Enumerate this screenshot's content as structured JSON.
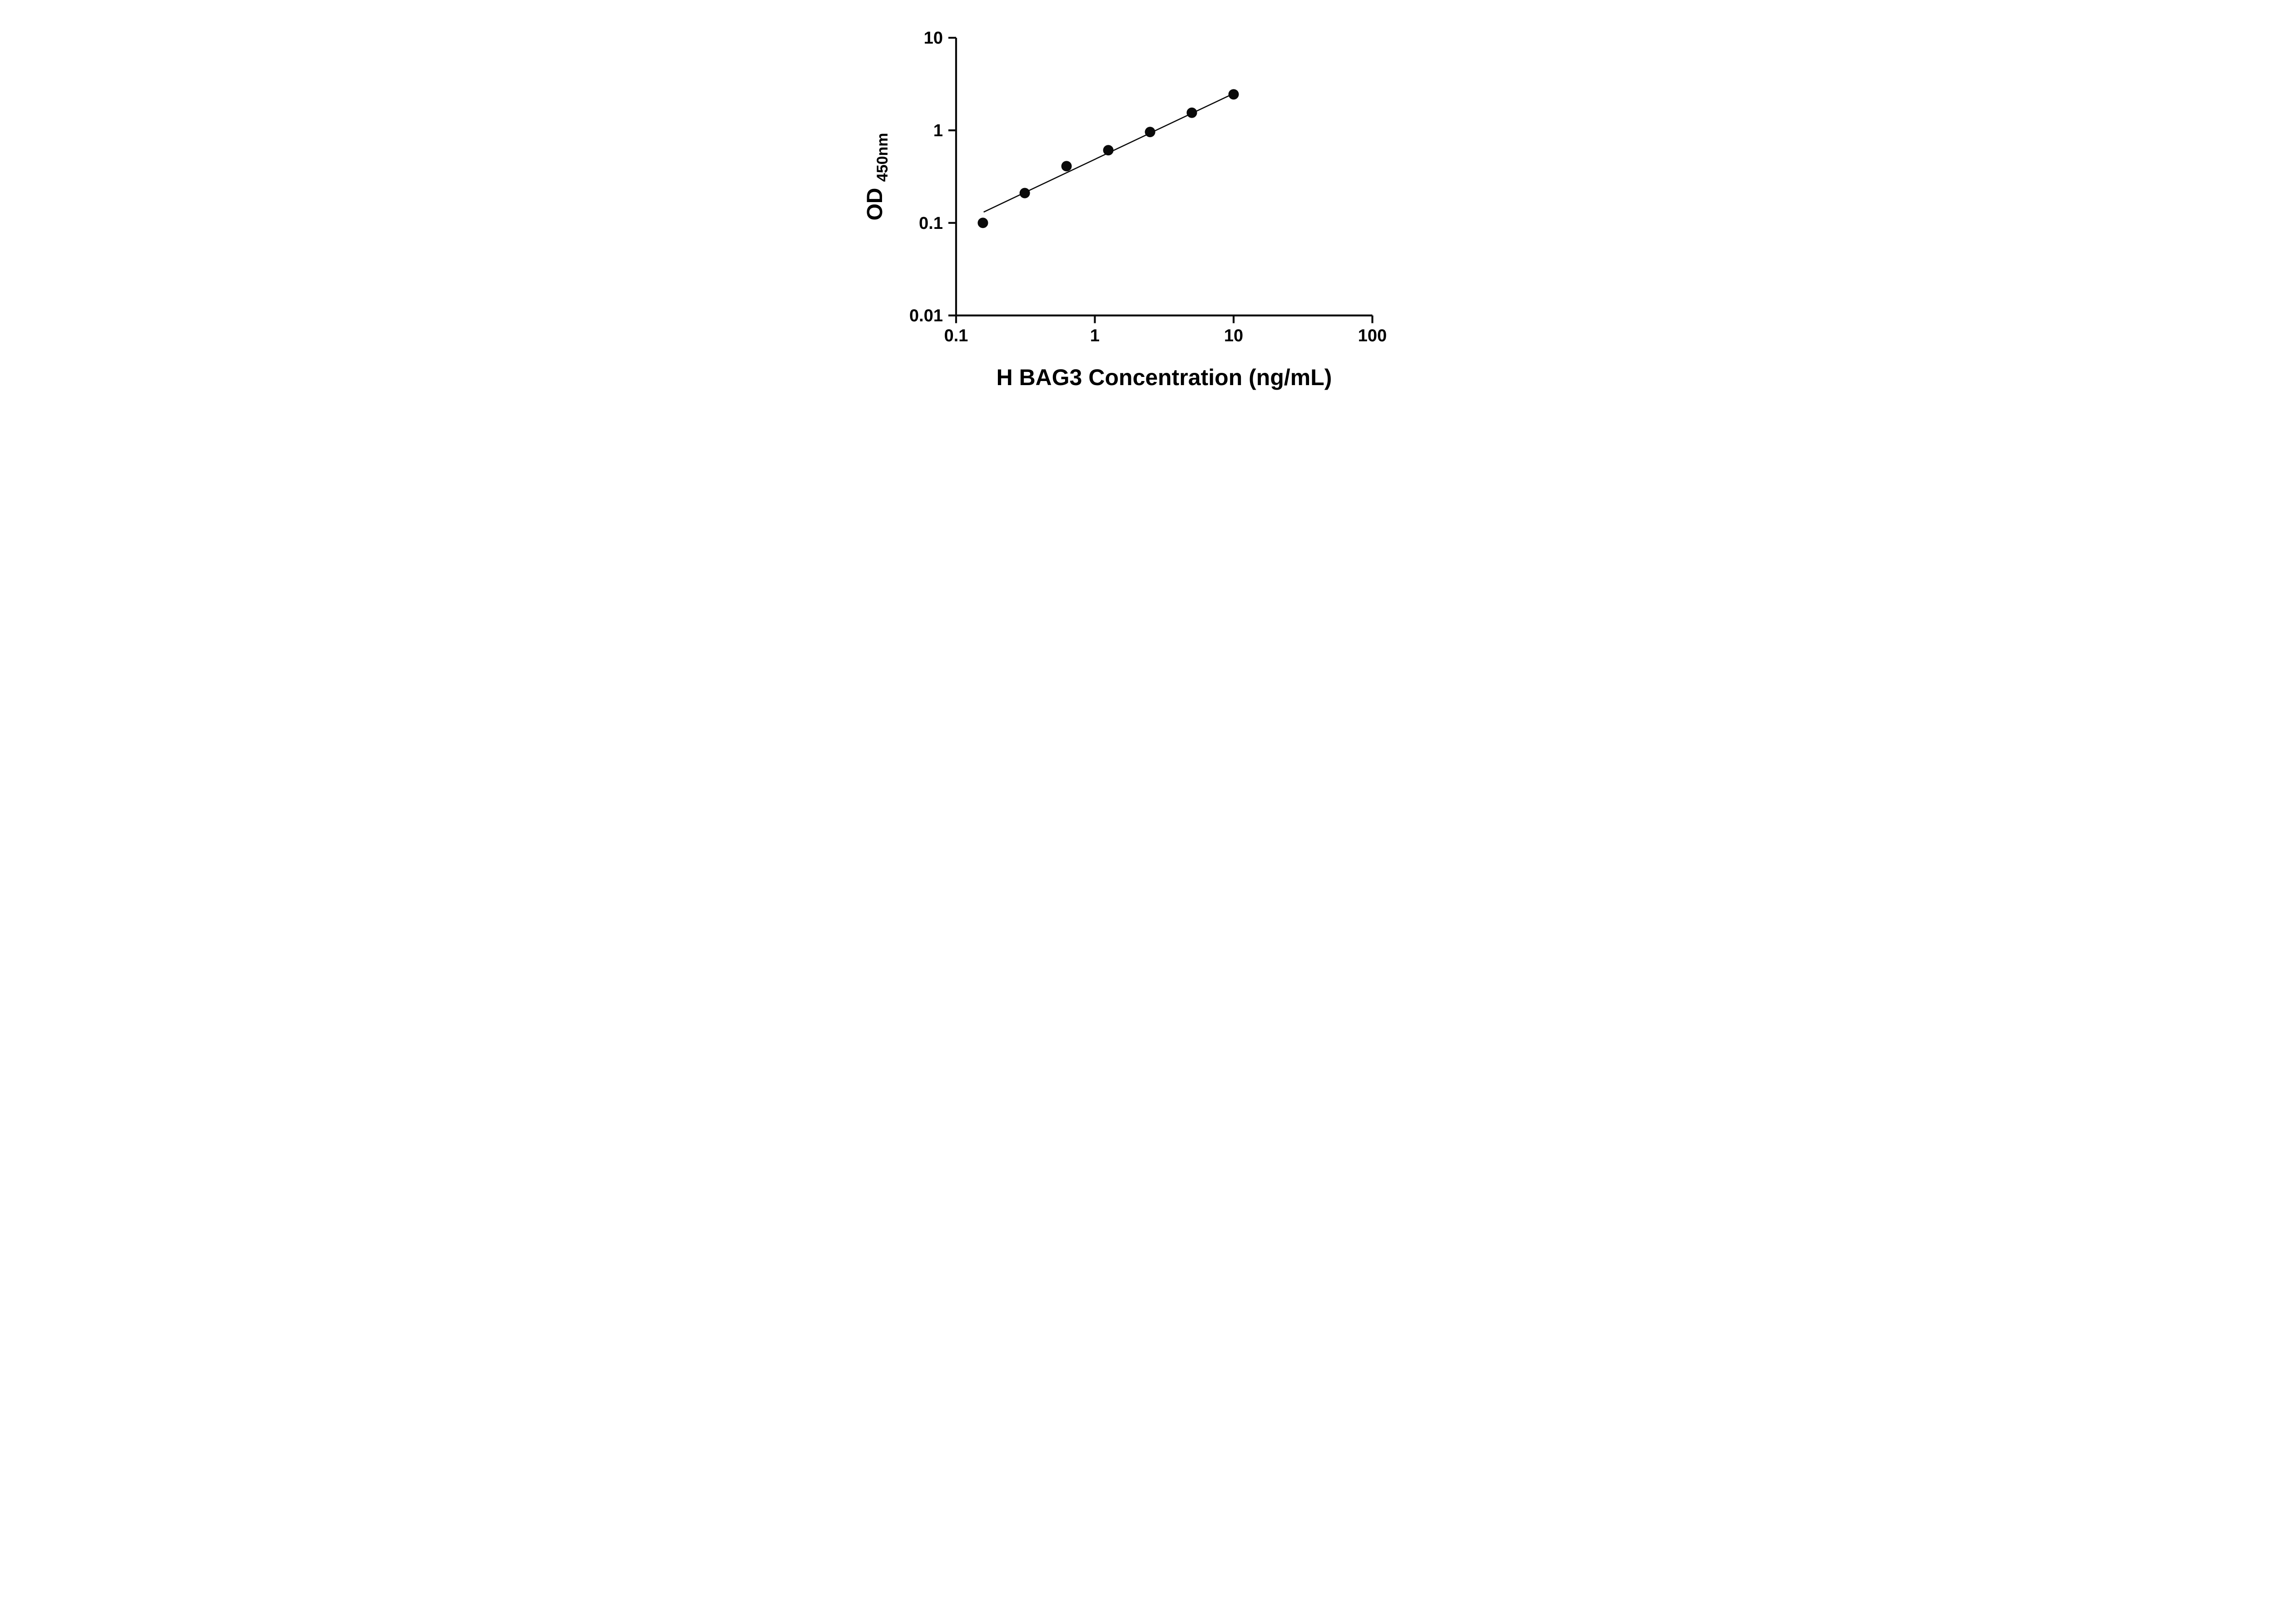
{
  "chart_data": {
    "type": "scatter",
    "title": "",
    "xlabel": "H BAG3 Concentration (ng/mL)",
    "ylabel": "OD",
    "ylabel_sub": "450nm",
    "x_scale": "log",
    "y_scale": "log",
    "xlim": [
      0.1,
      100
    ],
    "ylim": [
      0.01,
      10
    ],
    "x_ticks": [
      0.1,
      1,
      10,
      100
    ],
    "x_tick_labels": [
      "0.1",
      "1",
      "10",
      "100"
    ],
    "y_ticks": [
      0.01,
      0.1,
      1,
      10
    ],
    "y_tick_labels": [
      "0.01",
      "0.1",
      "1",
      "10"
    ],
    "points": {
      "x": [
        0.156,
        0.3125,
        0.625,
        1.25,
        2.5,
        5,
        10
      ],
      "y": [
        0.1,
        0.21,
        0.41,
        0.61,
        0.96,
        1.55,
        2.45
      ]
    },
    "trend_line": {
      "x1": 0.158,
      "y1": 0.131,
      "x2": 10.0,
      "y2": 2.5
    },
    "grid": false,
    "legend": false,
    "marker_color": "#0a0a0a",
    "line_color": "#0a0a0a",
    "axis_color": "#0a0a0a",
    "background_color": "#ffffff"
  }
}
